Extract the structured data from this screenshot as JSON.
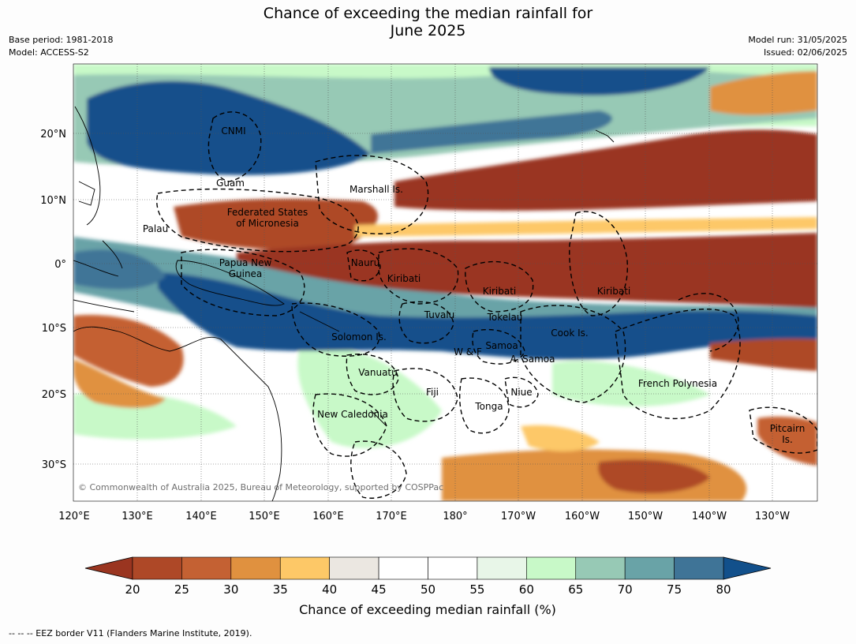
{
  "title_line1": "Chance of exceeding the median rainfall for",
  "title_line2": "June 2025",
  "meta_left": {
    "line1": "Base period: 1981-2018",
    "line2": "Model: ACCESS-S2"
  },
  "meta_right": {
    "line1": "Model run: 31/05/2025",
    "line2": "Issued: 02/06/2025"
  },
  "map": {
    "lon_labels": [
      "120°E",
      "130°E",
      "140°E",
      "150°E",
      "160°E",
      "170°E",
      "180°",
      "170°W",
      "160°W",
      "150°W",
      "140°W",
      "130°W"
    ],
    "lat_labels": [
      "20°N",
      "10°N",
      "0°",
      "10°S",
      "20°S",
      "30°S"
    ],
    "copyright": "© Commonwealth of Australia 2025, Bureau of Meteorology, supported by COSPPac",
    "regions": [
      "CNMI",
      "Guam",
      "Marshall Is.",
      "Federated States",
      "of Micronesia",
      "Palau",
      "Papua New",
      "Guinea",
      "Nauru",
      "Kiribati",
      "Kiribati",
      "Kiribati",
      "Tuvalu",
      "Tokelau",
      "Cook Is.",
      "Solomon Is.",
      "W & F",
      "Samoa",
      "A. Samoa",
      "Vanuatu",
      "Fiji",
      "Niue",
      "Tonga",
      "French Polynesia",
      "New Caledonia",
      "Pitcairn",
      "Is."
    ]
  },
  "colorbar": {
    "ticks": [
      "20",
      "25",
      "30",
      "35",
      "40",
      "45",
      "50",
      "55",
      "60",
      "65",
      "70",
      "75",
      "80"
    ],
    "colors": [
      "#ae4827",
      "#c46133",
      "#e0913f",
      "#fdc867",
      "#ebe7e1",
      "#ffffff",
      "#ffffff",
      "#e8f6e8",
      "#c8f9c8",
      "#97c9b5",
      "#69a3a7",
      "#3f7497"
    ],
    "under_color": "#9a3520",
    "over_color": "#12508b",
    "label": "Chance of exceeding median rainfall (%)"
  },
  "footer": "--  --  -- EEZ border V11 (Flanders Marine Institute, 2019)."
}
